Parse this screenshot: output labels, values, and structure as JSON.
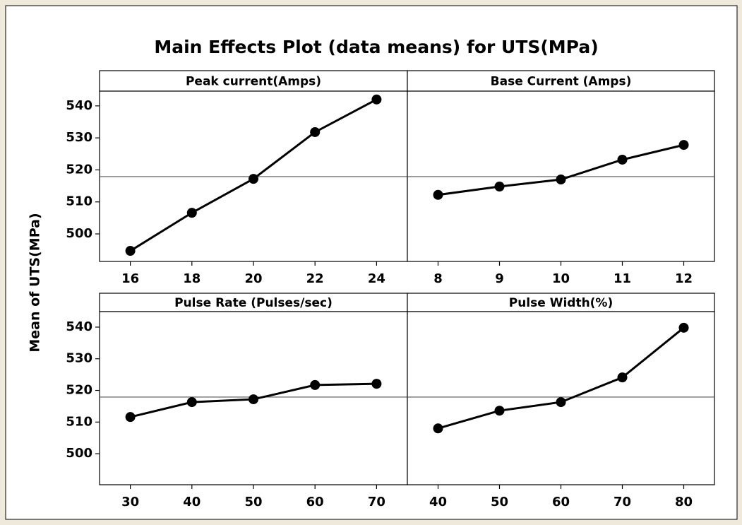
{
  "title": "Main Effects Plot (data means) for UTS(MPa)",
  "y_label": "Mean of UTS(MPa)",
  "chart_data": [
    {
      "type": "line",
      "title": "Peak current(Amps)",
      "x": [
        16,
        18,
        20,
        22,
        24
      ],
      "series": [
        {
          "color": "#000000",
          "values": [
            494.7,
            506.6,
            517.2,
            531.8,
            542.0
          ]
        }
      ],
      "xlim": [
        15,
        25
      ],
      "xticks": [
        16,
        18,
        20,
        22,
        24
      ],
      "ylim": [
        491.4,
        544.6
      ],
      "yticks": [
        500,
        510,
        520,
        530,
        540
      ],
      "reference": 517.9
    },
    {
      "type": "line",
      "title": "Base Current (Amps)",
      "x": [
        8,
        9,
        10,
        11,
        12
      ],
      "series": [
        {
          "color": "#000000",
          "values": [
            512.2,
            514.8,
            517.0,
            523.2,
            527.8
          ]
        }
      ],
      "xlim": [
        7.5,
        12.5
      ],
      "xticks": [
        8,
        9,
        10,
        11,
        12
      ],
      "ylim": [
        491.4,
        544.6
      ],
      "reference": 517.9
    },
    {
      "type": "line",
      "title": "Pulse Rate (Pulses/sec)",
      "x": [
        30,
        40,
        50,
        60,
        70
      ],
      "series": [
        {
          "color": "#000000",
          "values": [
            511.6,
            516.3,
            517.2,
            521.7,
            522.1
          ]
        }
      ],
      "xlim": [
        25,
        75
      ],
      "xticks": [
        30,
        40,
        50,
        60,
        70
      ],
      "ylim": [
        490.2,
        544.9
      ],
      "yticks": [
        500,
        510,
        520,
        530,
        540
      ],
      "reference": 517.9
    },
    {
      "type": "line",
      "title": "Pulse Width(%)",
      "x": [
        40,
        50,
        60,
        70,
        80
      ],
      "series": [
        {
          "color": "#000000",
          "values": [
            508.0,
            513.6,
            516.3,
            524.1,
            539.8
          ]
        }
      ],
      "xlim": [
        35,
        85
      ],
      "xticks": [
        40,
        50,
        60,
        70,
        80
      ],
      "ylim": [
        490.2,
        544.9
      ],
      "reference": 517.9
    }
  ]
}
